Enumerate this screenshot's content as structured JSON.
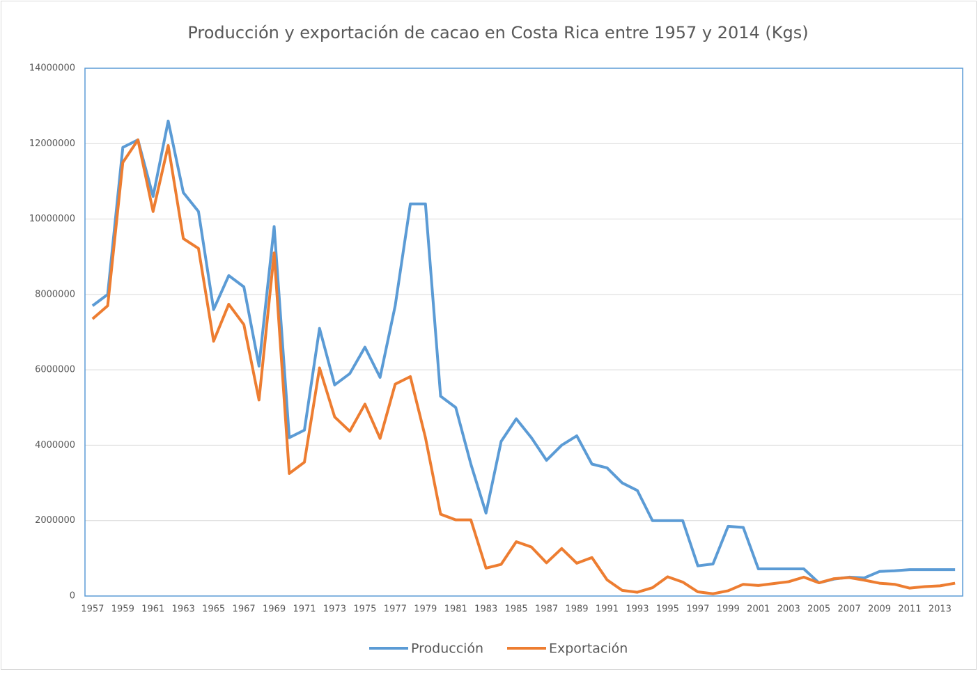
{
  "chart_data": {
    "type": "line",
    "title": "Producción y exportación de cacao en Costa Rica entre 1957 y 2014 (Kgs)",
    "categories": [
      "1957",
      null,
      "1959",
      null,
      "1961",
      null,
      "1963",
      null,
      "1965",
      null,
      "1967",
      null,
      "1969",
      null,
      "1971",
      null,
      "1973",
      null,
      "1975",
      null,
      "1977",
      null,
      "1979",
      null,
      "1981",
      null,
      "1983",
      null,
      "1985",
      null,
      "1987",
      null,
      "1989",
      null,
      "1991",
      null,
      "1993",
      null,
      "1995",
      null,
      "1997",
      null,
      "1999",
      null,
      "2001",
      null,
      "2003",
      null,
      "2005",
      null,
      "2007",
      null,
      "2009",
      null,
      "2011",
      null,
      "2013",
      null
    ],
    "series": [
      {
        "name": "Producción",
        "color": "#5b9bd5",
        "values": [
          7700000,
          8000000,
          11900000,
          12100000,
          10600000,
          12600000,
          10700000,
          10200000,
          7600000,
          8500000,
          8200000,
          6100000,
          9800000,
          4200000,
          4400000,
          7100000,
          5600000,
          5900000,
          6600000,
          5800000,
          7700000,
          10400000,
          10400000,
          5300000,
          5000000,
          3500000,
          2200000,
          4100000,
          4700000,
          4200000,
          3600000,
          4000000,
          4250000,
          3500000,
          3400000,
          3000000,
          2800000,
          2000000,
          2000000,
          2000000,
          800000,
          850000,
          1850000,
          1820000,
          720000,
          720000,
          720000,
          720000,
          350000,
          450000,
          500000,
          480000,
          650000,
          670000,
          700000,
          700000,
          700000,
          700000
        ]
      },
      {
        "name": "Exportación",
        "color": "#ed7d31",
        "values": [
          7350000,
          7700000,
          11500000,
          12100000,
          10200000,
          11950000,
          9480000,
          9220000,
          6760000,
          7740000,
          7200000,
          5200000,
          9100000,
          3250000,
          3550000,
          6050000,
          4750000,
          4370000,
          5090000,
          4180000,
          5620000,
          5820000,
          4200000,
          2170000,
          2020000,
          2020000,
          740000,
          840000,
          1440000,
          1300000,
          880000,
          1260000,
          870000,
          1020000,
          430000,
          150000,
          100000,
          220000,
          510000,
          370000,
          110000,
          60000,
          140000,
          310000,
          280000,
          330000,
          380000,
          500000,
          350000,
          460000,
          490000,
          420000,
          340000,
          310000,
          210000,
          250000,
          270000,
          340000
        ]
      }
    ],
    "ylim": [
      0,
      14000000
    ],
    "yticks": [
      0,
      2000000,
      4000000,
      6000000,
      8000000,
      10000000,
      12000000,
      14000000
    ],
    "grid": true,
    "legend": "bottom"
  }
}
